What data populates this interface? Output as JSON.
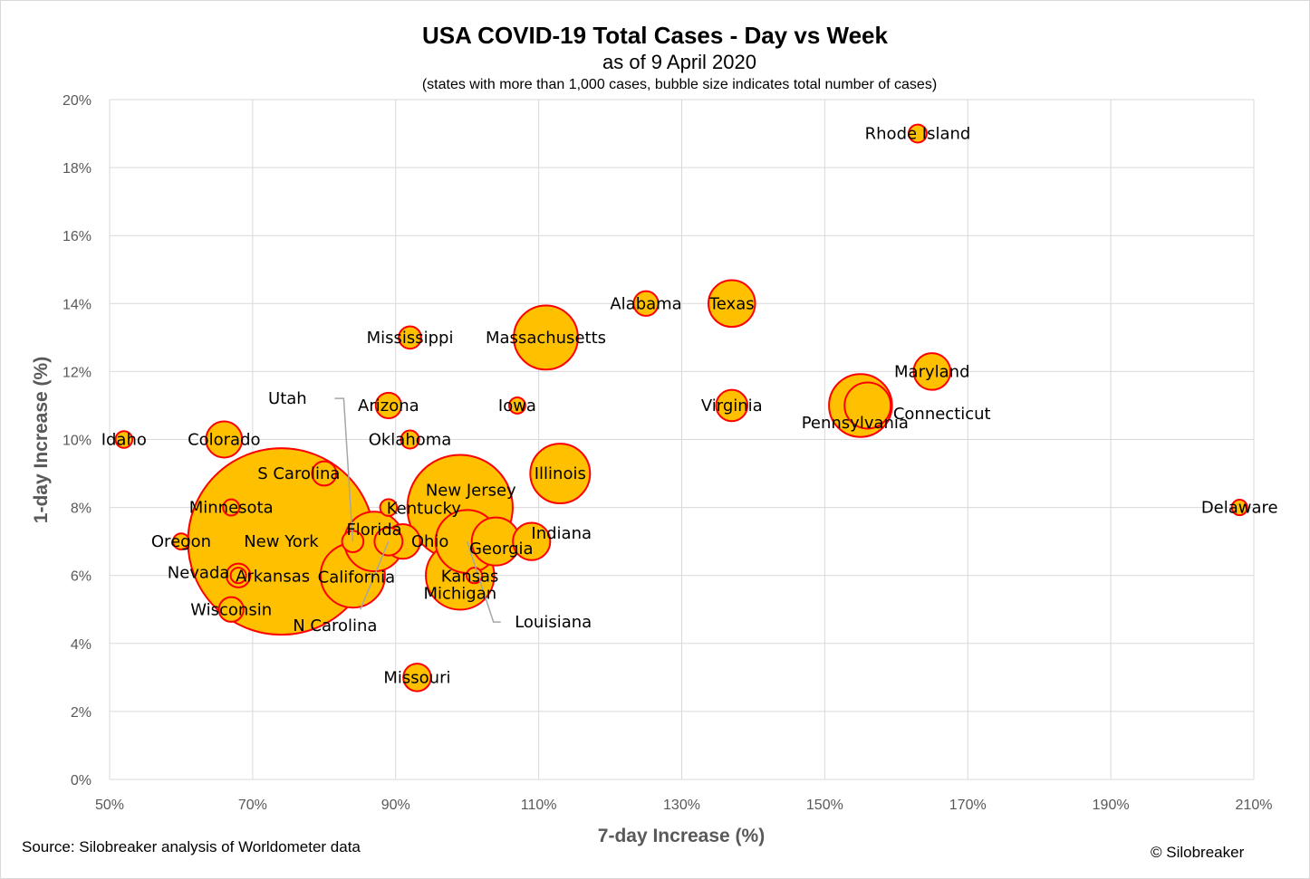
{
  "chart_data": {
    "type": "scatter",
    "title": "USA COVID-19 Total Cases - Day vs Week",
    "subtitle": "as of 9 April 2020",
    "note": "(states with more than 1,000 cases, bubble size indicates total number of cases)",
    "xlabel": "7-day Increase (%)",
    "ylabel": "1-day Increase (%)",
    "xlim": [
      50,
      210
    ],
    "ylim": [
      0,
      20
    ],
    "x_ticks": [
      "50%",
      "70%",
      "90%",
      "110%",
      "130%",
      "150%",
      "170%",
      "190%",
      "210%"
    ],
    "y_ticks": [
      "0%",
      "2%",
      "4%",
      "6%",
      "8%",
      "10%",
      "12%",
      "14%",
      "16%",
      "18%",
      "20%"
    ],
    "grid": true,
    "bubble_color": "#ffc000",
    "bubble_border": "#ff0000",
    "points": [
      {
        "label": "New York",
        "x": 74,
        "y": 7,
        "size": 160000
      },
      {
        "label": "New Jersey",
        "x": 99,
        "y": 8,
        "size": 51000
      },
      {
        "label": "Michigan",
        "x": 99,
        "y": 6,
        "size": 21500
      },
      {
        "label": "California",
        "x": 84,
        "y": 6,
        "size": 19000
      },
      {
        "label": "Massachusetts",
        "x": 111,
        "y": 13,
        "size": 18900
      },
      {
        "label": "Pennsylvania",
        "x": 155,
        "y": 11,
        "size": 18200
      },
      {
        "label": "Louisiana",
        "x": 100,
        "y": 7,
        "size": 18300
      },
      {
        "label": "Florida",
        "x": 87,
        "y": 7,
        "size": 16300
      },
      {
        "label": "Illinois",
        "x": 113,
        "y": 9,
        "size": 16400
      },
      {
        "label": "Texas",
        "x": 137,
        "y": 14,
        "size": 10000
      },
      {
        "label": "Georgia",
        "x": 104,
        "y": 7,
        "size": 10600
      },
      {
        "label": "Connecticut",
        "x": 156,
        "y": 11,
        "size": 9800
      },
      {
        "label": "Colorado",
        "x": 66,
        "y": 10,
        "size": 6000
      },
      {
        "label": "Indiana",
        "x": 109,
        "y": 7,
        "size": 6400
      },
      {
        "label": "Ohio",
        "x": 91,
        "y": 7,
        "size": 5500
      },
      {
        "label": "Maryland",
        "x": 165,
        "y": 12,
        "size": 6200
      },
      {
        "label": "Virginia",
        "x": 137,
        "y": 11,
        "size": 4500
      },
      {
        "label": "Wisconsin",
        "x": 67,
        "y": 5,
        "size": 2800
      },
      {
        "label": "Missouri",
        "x": 93,
        "y": 3,
        "size": 3500
      },
      {
        "label": "N Carolina",
        "x": 89,
        "y": 7,
        "size": 3600
      },
      {
        "label": "Arizona",
        "x": 89,
        "y": 11,
        "size": 3000
      },
      {
        "label": "S Carolina",
        "x": 80,
        "y": 9,
        "size": 2700
      },
      {
        "label": "Alabama",
        "x": 125,
        "y": 14,
        "size": 2800
      },
      {
        "label": "Mississippi",
        "x": 92,
        "y": 13,
        "size": 2300
      },
      {
        "label": "Nevada",
        "x": 68,
        "y": 6,
        "size": 2600
      },
      {
        "label": "Utah",
        "x": 84,
        "y": 7,
        "size": 2100
      },
      {
        "label": "Oklahoma",
        "x": 92,
        "y": 10,
        "size": 1500
      },
      {
        "label": "Kentucky",
        "x": 89,
        "y": 8,
        "size": 1300
      },
      {
        "label": "Arkansas",
        "x": 68,
        "y": 6,
        "size": 1100
      },
      {
        "label": "Kansas",
        "x": 101,
        "y": 6,
        "size": 1100
      },
      {
        "label": "Iowa",
        "x": 107,
        "y": 11,
        "size": 1200
      },
      {
        "label": "Minnesota",
        "x": 67,
        "y": 8,
        "size": 1200
      },
      {
        "label": "Oregon",
        "x": 60,
        "y": 7,
        "size": 1200
      },
      {
        "label": "Idaho",
        "x": 52,
        "y": 10,
        "size": 1300
      },
      {
        "label": "Rhode Island",
        "x": 163,
        "y": 19,
        "size": 1500
      },
      {
        "label": "Delaware",
        "x": 208,
        "y": 8,
        "size": 1100
      }
    ]
  },
  "footer": {
    "source": "Source: Silobreaker analysis of Worldometer data",
    "copyright": "© Silobreaker"
  }
}
